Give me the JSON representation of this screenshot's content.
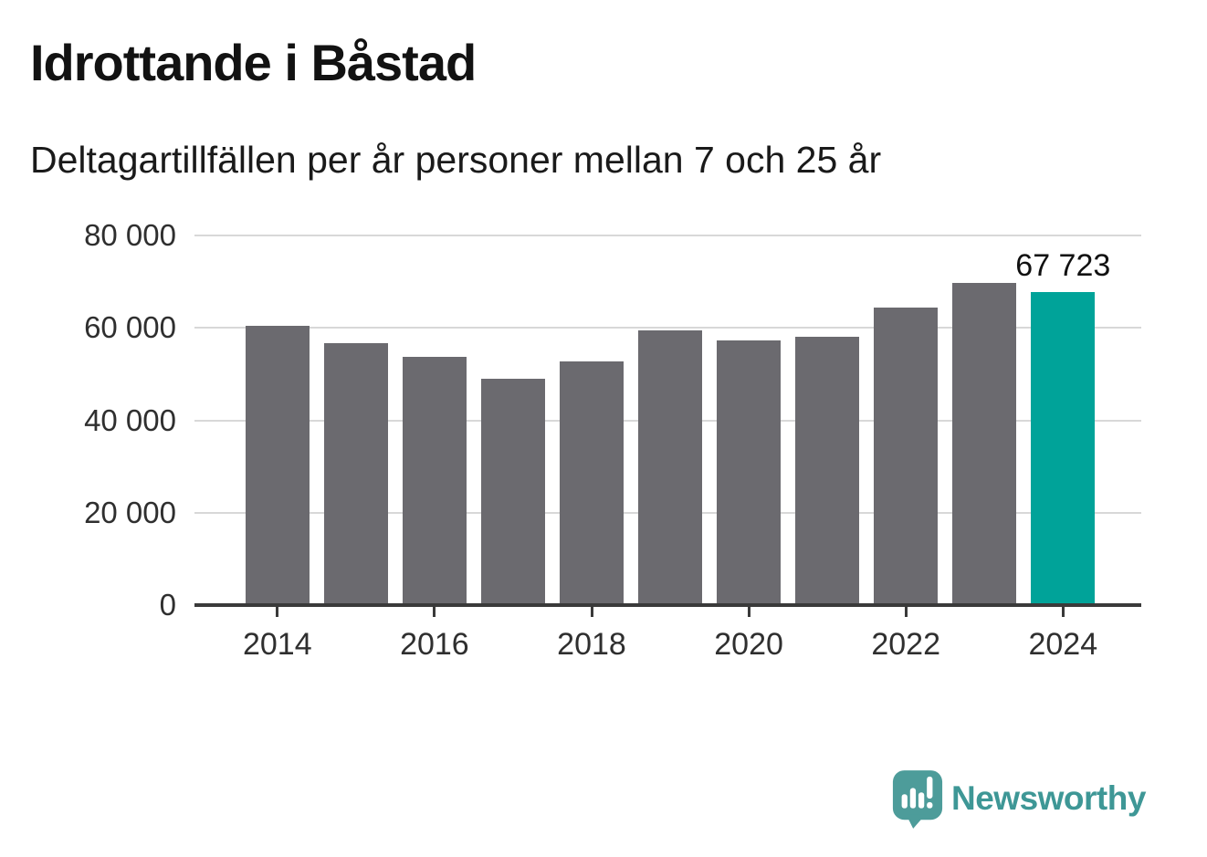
{
  "header": {
    "title": "Idrottande i Båstad",
    "subtitle": "Deltagartillfällen per år personer mellan 7 och 25 år"
  },
  "chart_data": {
    "type": "bar",
    "title": "Idrottande i Båstad",
    "subtitle": "Deltagartillfällen per år personer mellan 7 och 25 år",
    "xlabel": "",
    "ylabel": "",
    "categories": [
      "2014",
      "2015",
      "2016",
      "2017",
      "2018",
      "2019",
      "2020",
      "2021",
      "2022",
      "2023",
      "2024"
    ],
    "values": [
      60400,
      56600,
      53800,
      48900,
      52800,
      59400,
      57300,
      58100,
      64400,
      69700,
      67723
    ],
    "ylim": [
      0,
      80000
    ],
    "yticks": [
      0,
      20000,
      40000,
      60000,
      80000
    ],
    "ytick_labels": [
      "0",
      "20 000",
      "40 000",
      "60 000",
      "80 000"
    ],
    "xtick_labels": [
      "2014",
      "2016",
      "2018",
      "2020",
      "2022",
      "2024"
    ],
    "grid": "horizontal",
    "legend": "none",
    "highlight_index": 10,
    "annotation": {
      "index": 10,
      "text": "67 723",
      "value": 67723
    },
    "colors": {
      "bar": "#6b6a6f",
      "highlight": "#00a399",
      "gridline": "#d8d8d8",
      "axis": "#3a3a3a",
      "tick_label": "#2f2f2f"
    }
  },
  "footer": {
    "brand": "Newsworthy",
    "logo_icon": "newsworthy-speech-bubble-chart-icon",
    "brand_text_color": "#3e9796",
    "brand_icon_color": "#4d9c9a"
  }
}
